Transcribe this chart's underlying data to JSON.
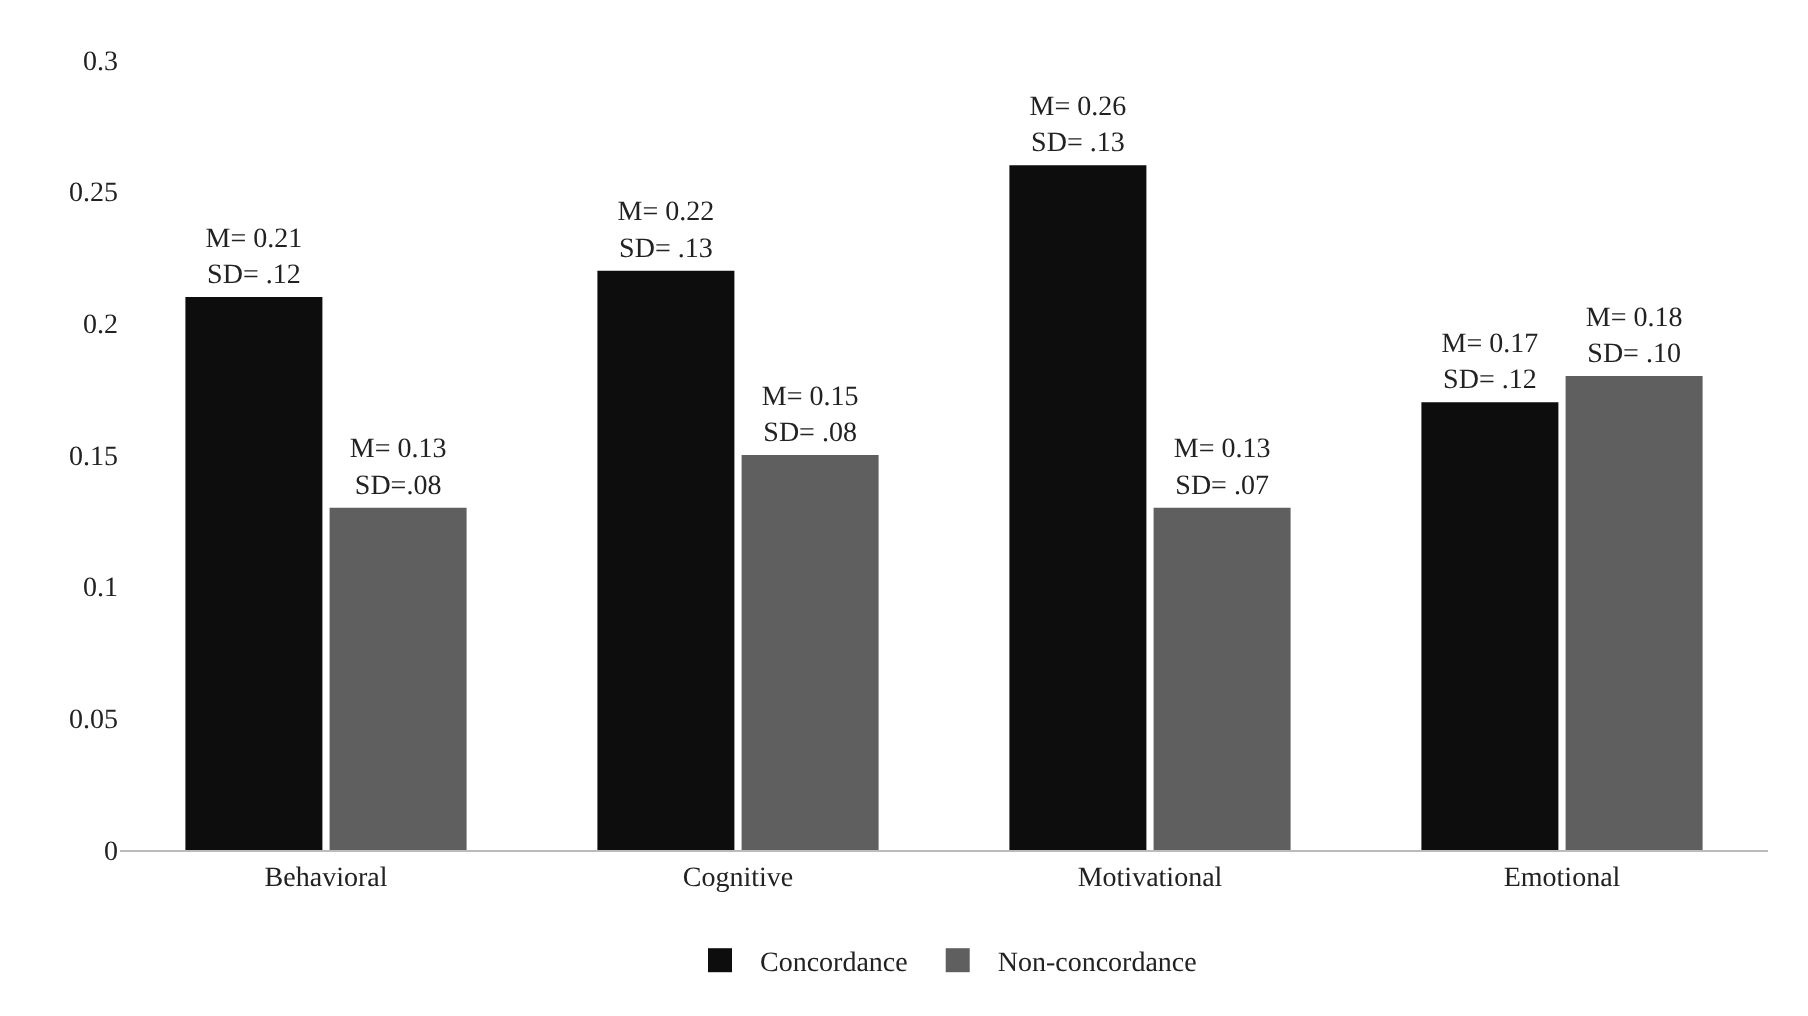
{
  "chart_data": {
    "type": "bar",
    "categories": [
      "Behavioral",
      "Cognitive",
      "Motivational",
      "Emotional"
    ],
    "series": [
      {
        "name": "Concordance",
        "color": "#0d0d0d",
        "values": [
          0.21,
          0.22,
          0.26,
          0.17
        ],
        "value_labels": [
          "M= 0.21\nSD= .12",
          "M= 0.22\nSD= .13",
          "M= 0.26\nSD= .13",
          "M= 0.17\nSD= .12"
        ]
      },
      {
        "name": "Non-concordance",
        "color": "#5f5f5f",
        "values": [
          0.13,
          0.15,
          0.13,
          0.18
        ],
        "value_labels": [
          "M= 0.13\nSD=.08",
          "M= 0.15\nSD= .08",
          "M= 0.13\nSD= .07",
          "M= 0.18\nSD= .10"
        ]
      }
    ],
    "ylim": [
      0,
      0.3
    ],
    "yticks": [
      0,
      0.05,
      0.1,
      0.15,
      0.2,
      0.25,
      0.3
    ],
    "grid": false,
    "legend": "bottom"
  }
}
